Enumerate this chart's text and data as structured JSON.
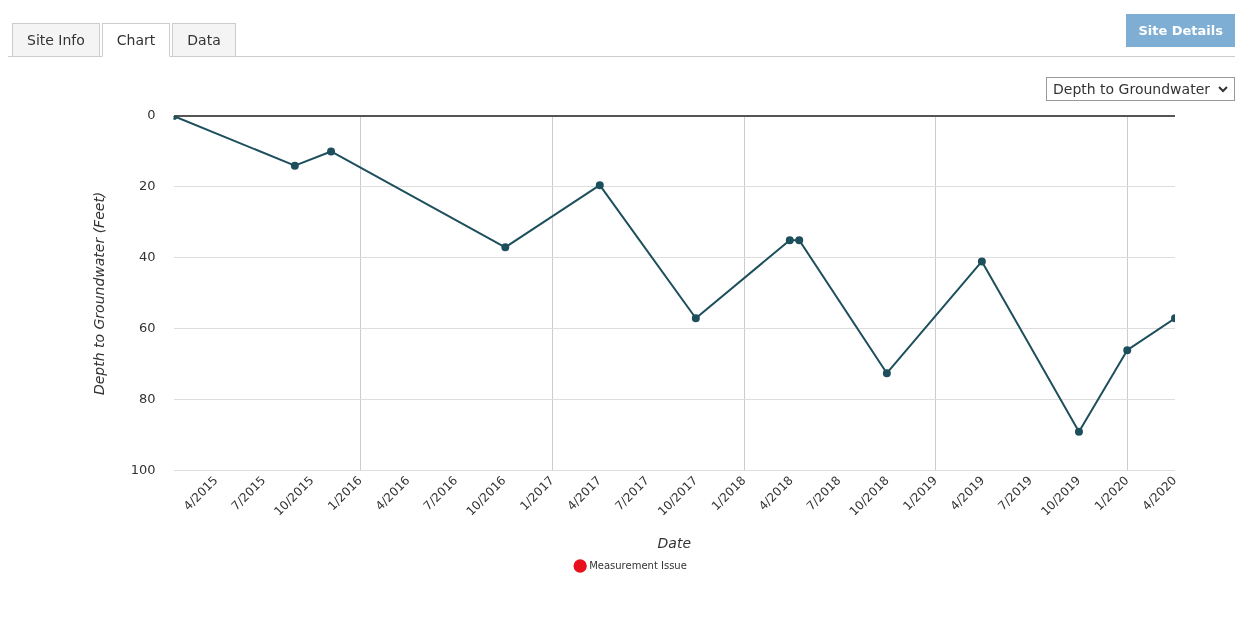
{
  "chart_data": {
    "type": "line",
    "xlabel": "Date",
    "ylabel": "Depth to Groundwater (Feet)",
    "annotations": [
      "Site Info",
      "Chart",
      "Data",
      "Site Details",
      "Depth to Groundwater"
    ],
    "x": [
      "2015-01-10",
      "2015-08-29",
      "2015-11-06",
      "2016-10-03",
      "2017-04-01",
      "2017-10-01",
      "2018-03-29",
      "2018-04-16",
      "2018-09-30",
      "2019-03-30",
      "2019-10-01",
      "2020-01-01",
      "2020-04-01"
    ],
    "series": [
      {
        "color": "#1d4f5c",
        "values": [
          0,
          14,
          10,
          37,
          19.5,
          57,
          35,
          35,
          72.5,
          41,
          89,
          66,
          57
        ]
      },
      {
        "name": "Measurement Issue",
        "type": "scatter",
        "color": "#e8101c",
        "values": [
          null,
          null,
          null,
          null,
          null,
          null,
          null,
          null,
          null,
          null,
          null,
          null,
          null
        ]
      }
    ],
    "xlim": [
      "2015-01-10",
      "2020-04-01"
    ],
    "xticks": [
      {
        "value": "2015-04-01",
        "label": "4/2015"
      },
      {
        "value": "2015-07-01",
        "label": "7/2015"
      },
      {
        "value": "2015-10-01",
        "label": "10/2015"
      },
      {
        "value": "2016-01-01",
        "label": "1/2016"
      },
      {
        "value": "2016-04-01",
        "label": "4/2016"
      },
      {
        "value": "2016-07-01",
        "label": "7/2016"
      },
      {
        "value": "2016-10-01",
        "label": "10/2016"
      },
      {
        "value": "2017-01-01",
        "label": "1/2017"
      },
      {
        "value": "2017-04-01",
        "label": "4/2017"
      },
      {
        "value": "2017-07-01",
        "label": "7/2017"
      },
      {
        "value": "2017-10-01",
        "label": "10/2017"
      },
      {
        "value": "2018-01-01",
        "label": "1/2018"
      },
      {
        "value": "2018-04-01",
        "label": "4/2018"
      },
      {
        "value": "2018-07-01",
        "label": "7/2018"
      },
      {
        "value": "2018-10-01",
        "label": "10/2018"
      },
      {
        "value": "2019-01-01",
        "label": "1/2019"
      },
      {
        "value": "2019-04-01",
        "label": "4/2019"
      },
      {
        "value": "2019-07-01",
        "label": "7/2019"
      },
      {
        "value": "2019-10-01",
        "label": "10/2019"
      },
      {
        "value": "2020-01-01",
        "label": "1/2020"
      },
      {
        "value": "2020-04-01",
        "label": "4/2020"
      }
    ],
    "ylim": [
      100,
      0
    ],
    "yticks": [
      0,
      20,
      40,
      60,
      80,
      100
    ],
    "grid": true,
    "legend": "bottom",
    "marker": "circle",
    "line_style": "solid"
  }
}
